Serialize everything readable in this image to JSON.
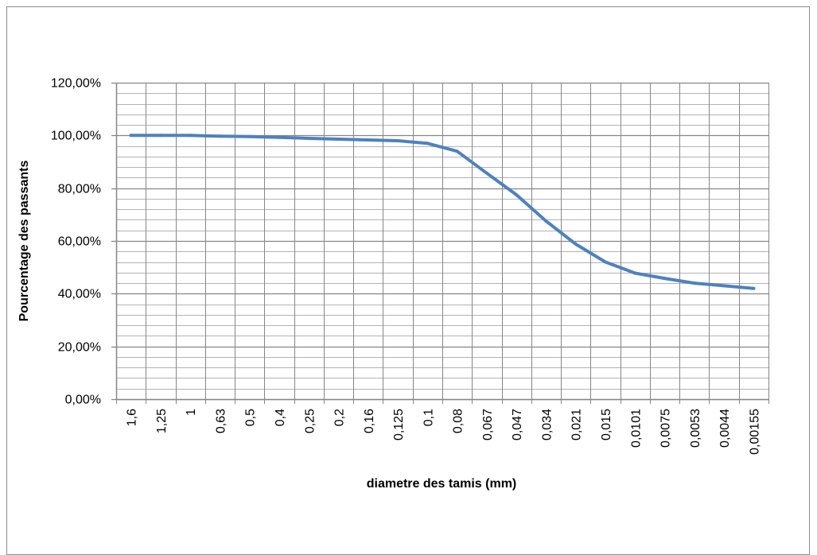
{
  "chart_data": {
    "type": "line",
    "title": "",
    "xlabel": "diametre des tamis (mm)",
    "ylabel": "Pourcentage des passants",
    "categories": [
      "1,6",
      "1,25",
      "1",
      "0,63",
      "0,5",
      "0,4",
      "0,25",
      "0,2",
      "0,16",
      "0,125",
      "0,1",
      "0,08",
      "0,067",
      "0,047",
      "0,034",
      "0,021",
      "0,015",
      "0,0101",
      "0,0075",
      "0,0053",
      "0,0044",
      "0,00155"
    ],
    "series": [
      {
        "values": [
          100.0,
          100.0,
          100.0,
          99.7,
          99.6,
          99.3,
          98.9,
          98.6,
          98.3,
          98.0,
          97.0,
          94.0,
          85.7,
          77.5,
          67.5,
          58.8,
          52.0,
          47.8,
          45.8,
          44.0,
          43.0,
          42.0
        ]
      }
    ],
    "ylim": [
      0,
      120
    ],
    "yticks": [
      0,
      20,
      40,
      60,
      80,
      100,
      120
    ],
    "ytick_labels": [
      "0,00%",
      "20,00%",
      "40,00%",
      "60,00%",
      "80,00%",
      "100,00%",
      "120,00%"
    ],
    "minor_ystep": 4,
    "grid": true,
    "legend": "none",
    "colors": {
      "line": "#4f81bd",
      "major_grid": "#868686",
      "minor_grid": "#b3b3b3",
      "axis": "#868686"
    }
  }
}
